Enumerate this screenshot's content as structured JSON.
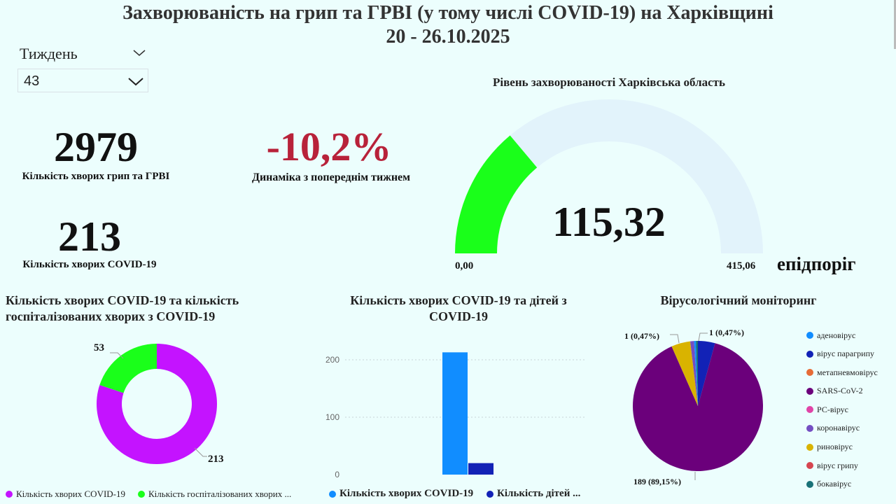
{
  "header": {
    "title_line1": "Захворюваність на грип та ГРВІ (у тому числі COVID-19) на Харківщині",
    "title_line2": "20 - 26.10.2025"
  },
  "filter": {
    "label": "Тиждень",
    "selected": "43"
  },
  "kpi": {
    "flu_count": "2979",
    "flu_caption": "Кількість хворих грип та ГРВІ",
    "covid_count": "213",
    "covid_caption": "Кількість хворих COVID-19",
    "dynamics": "-10,2%",
    "dynamics_caption": "Динаміка з попереднім тижнем",
    "dynamics_color": "#b8223a"
  },
  "chart_data": [
    {
      "type": "gauge",
      "title": "Рівень захворюваності Харківська область",
      "value": 115.32,
      "value_label": "115,32",
      "min": 0,
      "min_label": "0,00",
      "max": 415.06,
      "max_label": "415,06",
      "max_caption": "епідпоріг",
      "colors": {
        "fill": "#1aff1a",
        "track": "#e2f3fb"
      }
    },
    {
      "type": "pie",
      "variant": "donut",
      "title": "Кількість хворих COVID-19 та кількість госпіталізованих хворих з COVID-19",
      "series": [
        {
          "name": "Кількість хворих COVID-19",
          "value": 213,
          "label": "213",
          "color": "#c413ff"
        },
        {
          "name": "Кількість госпіталізованих хворих ...",
          "value": 53,
          "label": "53",
          "color": "#1aff1a"
        }
      ]
    },
    {
      "type": "bar",
      "title": "Кількість хворих COVID-19 та дітей з COVID-19",
      "ylim": [
        0,
        250
      ],
      "yticks": [
        0,
        100,
        200
      ],
      "grid": true,
      "series": [
        {
          "name": "Кількість хворих COVID-19",
          "value": 213,
          "color": "#118dff"
        },
        {
          "name": "Кількість дітей ...",
          "value": 20,
          "color": "#1222b6"
        }
      ]
    },
    {
      "type": "pie",
      "title": "Вірусологічний моніторинг",
      "slices": [
        {
          "name": "аденовірус",
          "value": 1,
          "color": "#118dff"
        },
        {
          "name": "вірус парагрипу",
          "value": 9,
          "color": "#1222b6"
        },
        {
          "name": "метапневмовірус",
          "value": 0,
          "color": "#e66c37"
        },
        {
          "name": "SARS-CoV-2",
          "value": 189,
          "color": "#6b007b"
        },
        {
          "name": "РС-вірус",
          "value": 0,
          "color": "#e044a7"
        },
        {
          "name": "коронавірус",
          "value": 2,
          "color": "#744ec2"
        },
        {
          "name": "риновірус",
          "value": 10,
          "color": "#d9b300"
        },
        {
          "name": "вірус грипу",
          "value": 0,
          "color": "#d64550"
        },
        {
          "name": "бокавірус",
          "value": 1,
          "color": "#197278"
        }
      ],
      "labels": {
        "sars": "189 (89,15%)",
        "adeno": "1 (0,47%)",
        "boca": "1 (0,47%)"
      }
    }
  ]
}
